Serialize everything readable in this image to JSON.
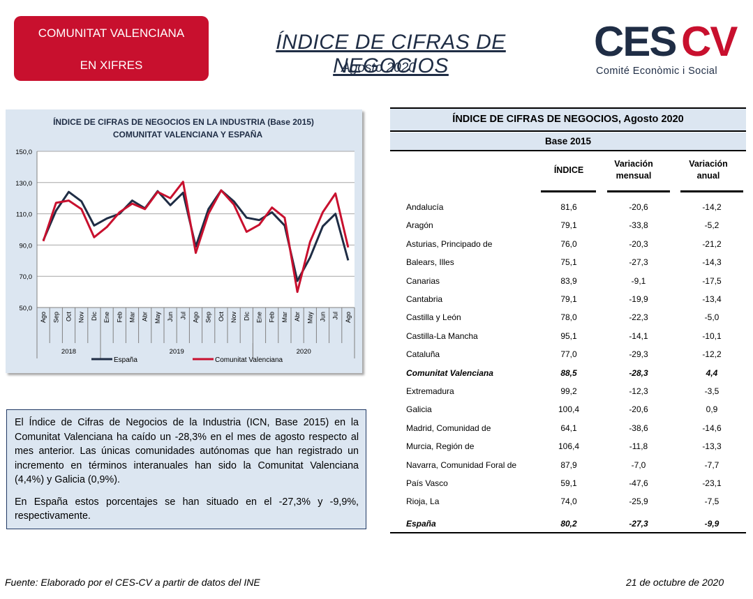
{
  "header": {
    "badge_line1": "COMUNITAT VALENCIANA",
    "badge_line2": "EN XIFRES",
    "title": "ÍNDICE DE CIFRAS DE NEGOCIOS",
    "subtitle": "Agosto 2020"
  },
  "logo": {
    "text_dark": "CES",
    "text_red": "CV",
    "subtitle": "Comité Econòmic i Social",
    "colors": {
      "dark": "#1f2d45",
      "red": "#c8102e"
    }
  },
  "chart_data": {
    "type": "line",
    "title": "ÍNDICE DE CIFRAS DE NEGOCIOS EN LA INDUSTRIA (Base 2015)",
    "subtitle": "COMUNITAT VALENCIANA Y ESPAÑA",
    "categories": [
      "Ago",
      "Sep",
      "Oct",
      "Nov",
      "Dic",
      "Ene",
      "Feb",
      "Mar",
      "Abr",
      "May",
      "Jun",
      "Jul",
      "Ago",
      "Sep",
      "Oct",
      "Nov",
      "Dic",
      "Ene",
      "Feb",
      "Mar",
      "Abr",
      "May",
      "Jun",
      "Jul",
      "Ago"
    ],
    "year_groups": [
      {
        "label": "2018",
        "start": 0,
        "end": 4
      },
      {
        "label": "2019",
        "start": 5,
        "end": 16
      },
      {
        "label": "2020",
        "start": 17,
        "end": 24
      }
    ],
    "yticks": [
      "50,0",
      "70,0",
      "90,0",
      "110,0",
      "130,0",
      "150,0"
    ],
    "ylim": [
      50,
      150
    ],
    "grid": true,
    "legend_position": "bottom",
    "series": [
      {
        "name": "España",
        "color": "#1f2d45",
        "values": [
          93.0,
          112.0,
          124.0,
          118.0,
          102.5,
          107.0,
          110.0,
          118.5,
          113.5,
          124.5,
          115.5,
          123.5,
          89.0,
          113.0,
          125.0,
          118.0,
          107.5,
          106.0,
          111.0,
          102.5,
          67.0,
          82.0,
          102.0,
          110.0,
          80.2
        ]
      },
      {
        "name": "Comunitat Valenciana",
        "color": "#c8102e",
        "values": [
          92.5,
          117.0,
          118.5,
          113.0,
          95.0,
          101.5,
          111.0,
          116.5,
          113.0,
          124.0,
          120.0,
          130.5,
          85.0,
          110.0,
          125.0,
          116.0,
          98.5,
          103.0,
          114.0,
          107.5,
          60.0,
          92.0,
          111.0,
          123.0,
          88.5
        ]
      }
    ]
  },
  "commentary": {
    "p1": "El Índice de Cifras de Negocios de la Industria (ICN, Base 2015) en la Comunitat Valenciana ha caído un -28,3% en el mes de agosto respecto al mes anterior. Las únicas comunidades autónomas que han registrado un incremento en términos interanuales han sido la Comunitat Valenciana (4,4%) y Galicia (0,9%).",
    "p2": "En España estos porcentajes se han situado en el -27,3% y -9,9%, respectivamente."
  },
  "table": {
    "title": "ÍNDICE DE CIFRAS DE NEGOCIOS, Agosto 2020",
    "base": "Base 2015",
    "col_indice": "ÍNDICE",
    "col_mensual": "Variación mensual",
    "col_anual": "Variación anual",
    "rows": [
      {
        "name": "Andalucía",
        "indice": "81,6",
        "mensual": "-20,6",
        "anual": "-14,2"
      },
      {
        "name": "Aragón",
        "indice": "79,1",
        "mensual": "-33,8",
        "anual": "-5,2"
      },
      {
        "name": "Asturias, Principado de",
        "indice": "76,0",
        "mensual": "-20,3",
        "anual": "-21,2"
      },
      {
        "name": "Balears, Illes",
        "indice": "75,1",
        "mensual": "-27,3",
        "anual": "-14,3"
      },
      {
        "name": "Canarias",
        "indice": "83,9",
        "mensual": "-9,1",
        "anual": "-17,5"
      },
      {
        "name": "Cantabria",
        "indice": "79,1",
        "mensual": "-19,9",
        "anual": "-13,4"
      },
      {
        "name": "Castilla y León",
        "indice": "78,0",
        "mensual": "-22,3",
        "anual": "-5,0"
      },
      {
        "name": "Castilla-La Mancha",
        "indice": "95,1",
        "mensual": "-14,1",
        "anual": "-10,1"
      },
      {
        "name": "Cataluña",
        "indice": "77,0",
        "mensual": "-29,3",
        "anual": "-12,2"
      },
      {
        "name": "Comunitat Valenciana",
        "indice": "88,5",
        "mensual": "-28,3",
        "anual": "4,4",
        "bold": true
      },
      {
        "name": "Extremadura",
        "indice": "99,2",
        "mensual": "-12,3",
        "anual": "-3,5"
      },
      {
        "name": "Galicia",
        "indice": "100,4",
        "mensual": "-20,6",
        "anual": "0,9"
      },
      {
        "name": "Madrid, Comunidad de",
        "indice": "64,1",
        "mensual": "-38,6",
        "anual": "-14,6"
      },
      {
        "name": "Murcia, Región de",
        "indice": "106,4",
        "mensual": "-11,8",
        "anual": "-13,3"
      },
      {
        "name": "Navarra, Comunidad Foral de",
        "indice": "87,9",
        "mensual": "-7,0",
        "anual": "-7,7"
      },
      {
        "name": "País Vasco",
        "indice": "59,1",
        "mensual": "-47,6",
        "anual": "-23,1"
      },
      {
        "name": "Rioja, La",
        "indice": "74,0",
        "mensual": "-25,9",
        "anual": "-7,5"
      },
      {
        "name": "España",
        "indice": "80,2",
        "mensual": "-27,3",
        "anual": "-9,9",
        "bold": true
      }
    ]
  },
  "footer": {
    "source": "Fuente: Elaborado por el CES-CV a partir de datos del INE",
    "date": "21 de octubre de 2020"
  }
}
